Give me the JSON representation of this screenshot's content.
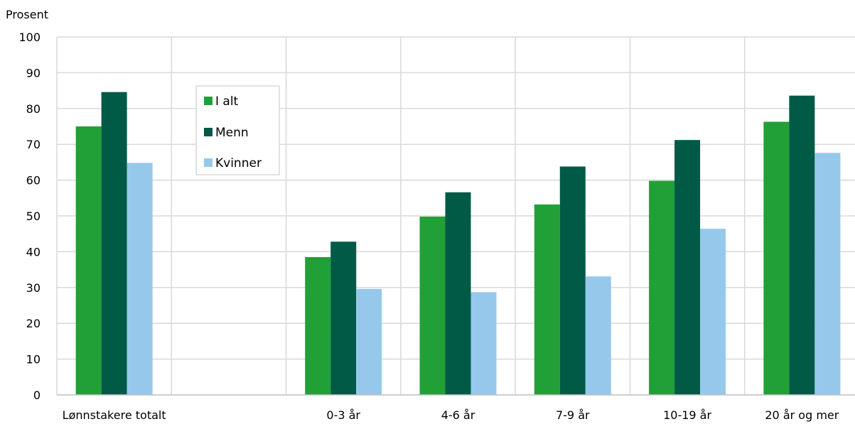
{
  "chart_data": {
    "type": "bar",
    "ylabel": "Prosent",
    "xlabel": "",
    "ylim": [
      0,
      100
    ],
    "yticks": [
      0,
      10,
      20,
      30,
      40,
      50,
      60,
      70,
      80,
      90,
      100
    ],
    "grid": true,
    "legend_position": "top-left",
    "categories": [
      "Lønnstakere totalt",
      "",
      "0-3 år",
      "4-6 år",
      "7-9 år",
      "10-19 år",
      "20 år og mer"
    ],
    "series": [
      {
        "name": "I alt",
        "color": "#22a038",
        "values": [
          75,
          null,
          38.5,
          49.8,
          53.2,
          59.8,
          76.3
        ]
      },
      {
        "name": "Menn",
        "color": "#005a46",
        "values": [
          84.6,
          null,
          42.8,
          56.6,
          63.8,
          71.2,
          83.6
        ]
      },
      {
        "name": "Kvinner",
        "color": "#96c8ec",
        "values": [
          64.8,
          null,
          29.6,
          28.7,
          33.1,
          46.4,
          67.6
        ]
      }
    ]
  }
}
